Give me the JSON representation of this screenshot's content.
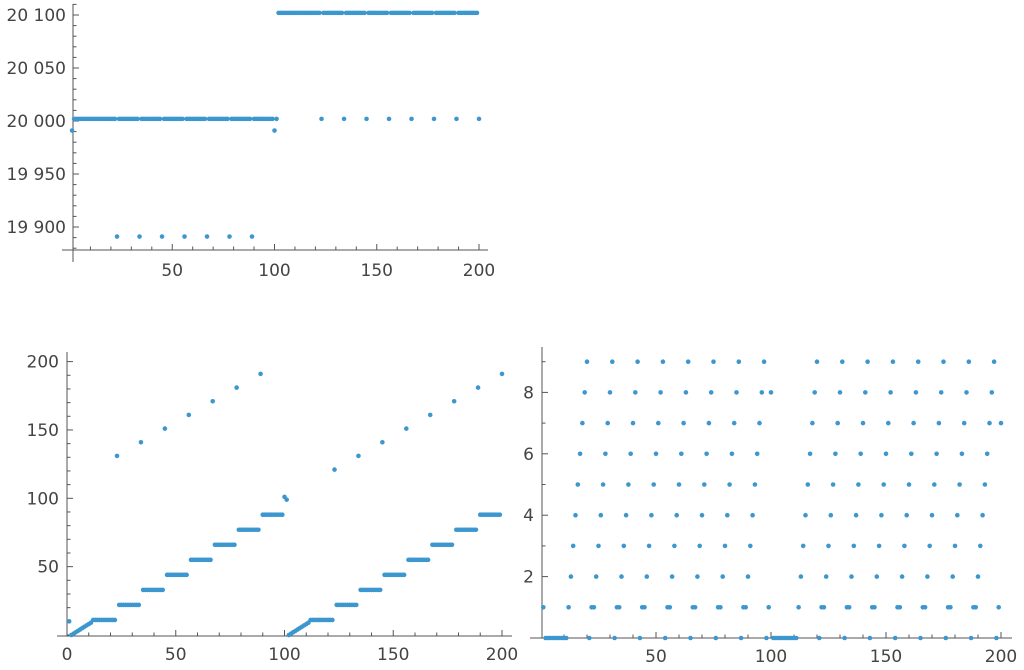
{
  "chart_data": [
    {
      "type": "scatter",
      "title": "",
      "xlabel": "",
      "ylabel": "",
      "x_start": 1,
      "x_step": 1,
      "xlim": [
        0,
        205
      ],
      "ylim": [
        19878,
        20111
      ],
      "grid": false,
      "point_color": "#3d97cf",
      "x_ticks": [
        50,
        100,
        150,
        200
      ],
      "x_tick_labels": [
        "50",
        "100",
        "150",
        "200"
      ],
      "y_ticks": [
        19900,
        19950,
        20000,
        20050,
        20100
      ],
      "y_tick_labels": [
        "19 900",
        "19 950",
        "20 000",
        "20 050",
        "20 100"
      ],
      "y": [
        19991,
        20002,
        20002,
        20002,
        20002,
        20002,
        20002,
        20002,
        20002,
        20002,
        20002,
        20002,
        20002,
        20002,
        20002,
        20002,
        20002,
        20002,
        20002,
        20002,
        20002,
        20002,
        19891,
        20002,
        20002,
        20002,
        20002,
        20002,
        20002,
        20002,
        20002,
        20002,
        20002,
        19891,
        20002,
        20002,
        20002,
        20002,
        20002,
        20002,
        20002,
        20002,
        20002,
        20002,
        19891,
        20002,
        20002,
        20002,
        20002,
        20002,
        20002,
        20002,
        20002,
        20002,
        20002,
        19891,
        20002,
        20002,
        20002,
        20002,
        20002,
        20002,
        20002,
        20002,
        20002,
        20002,
        19891,
        20002,
        20002,
        20002,
        20002,
        20002,
        20002,
        20002,
        20002,
        20002,
        20002,
        19891,
        20002,
        20002,
        20002,
        20002,
        20002,
        20002,
        20002,
        20002,
        20002,
        20002,
        19891,
        20002,
        20002,
        20002,
        20002,
        20002,
        20002,
        20002,
        20002,
        20002,
        20002,
        19991,
        20002,
        20102,
        20102,
        20102,
        20102,
        20102,
        20102,
        20102,
        20102,
        20102,
        20102,
        20102,
        20102,
        20102,
        20102,
        20102,
        20102,
        20102,
        20102,
        20102,
        20102,
        20102,
        20002,
        20102,
        20102,
        20102,
        20102,
        20102,
        20102,
        20102,
        20102,
        20102,
        20102,
        20002,
        20102,
        20102,
        20102,
        20102,
        20102,
        20102,
        20102,
        20102,
        20102,
        20102,
        20002,
        20102,
        20102,
        20102,
        20102,
        20102,
        20102,
        20102,
        20102,
        20102,
        20102,
        20002,
        20102,
        20102,
        20102,
        20102,
        20102,
        20102,
        20102,
        20102,
        20102,
        20102,
        20002,
        20102,
        20102,
        20102,
        20102,
        20102,
        20102,
        20102,
        20102,
        20102,
        20102,
        20002,
        20102,
        20102,
        20102,
        20102,
        20102,
        20102,
        20102,
        20102,
        20102,
        20102,
        20002,
        20102,
        20102,
        20102,
        20102,
        20102,
        20102,
        20102,
        20102,
        20102,
        20102,
        20002
      ]
    },
    {
      "type": "scatter",
      "title": "",
      "xlabel": "",
      "ylabel": "",
      "x_start": 1,
      "x_step": 1,
      "xlim": [
        0,
        205
      ],
      "ylim": [
        0,
        208
      ],
      "grid": false,
      "point_color": "#3d97cf",
      "x_ticks": [
        0,
        50,
        100,
        150,
        200
      ],
      "x_tick_labels": [
        "0",
        "50",
        "100",
        "150",
        "200"
      ],
      "y_ticks": [
        50,
        100,
        150,
        200
      ],
      "y_tick_labels": [
        "50",
        "100",
        "150",
        "200"
      ],
      "y": [
        10,
        0,
        1,
        2,
        3,
        4,
        5,
        6,
        7,
        8,
        9,
        11,
        11,
        11,
        11,
        11,
        11,
        11,
        11,
        11,
        11,
        11,
        131,
        22,
        22,
        22,
        22,
        22,
        22,
        22,
        22,
        22,
        22,
        141,
        33,
        33,
        33,
        33,
        33,
        33,
        33,
        33,
        33,
        33,
        151,
        44,
        44,
        44,
        44,
        44,
        44,
        44,
        44,
        44,
        44,
        161,
        55,
        55,
        55,
        55,
        55,
        55,
        55,
        55,
        55,
        55,
        171,
        66,
        66,
        66,
        66,
        66,
        66,
        66,
        66,
        66,
        66,
        181,
        77,
        77,
        77,
        77,
        77,
        77,
        77,
        77,
        77,
        77,
        191,
        88,
        88,
        88,
        88,
        88,
        88,
        88,
        88,
        88,
        88,
        101,
        99,
        0,
        1,
        2,
        3,
        4,
        5,
        6,
        7,
        8,
        9,
        11,
        11,
        11,
        11,
        11,
        11,
        11,
        11,
        11,
        11,
        11,
        121,
        22,
        22,
        22,
        22,
        22,
        22,
        22,
        22,
        22,
        22,
        131,
        33,
        33,
        33,
        33,
        33,
        33,
        33,
        33,
        33,
        33,
        141,
        44,
        44,
        44,
        44,
        44,
        44,
        44,
        44,
        44,
        44,
        151,
        55,
        55,
        55,
        55,
        55,
        55,
        55,
        55,
        55,
        55,
        161,
        66,
        66,
        66,
        66,
        66,
        66,
        66,
        66,
        66,
        66,
        171,
        77,
        77,
        77,
        77,
        77,
        77,
        77,
        77,
        77,
        77,
        181,
        88,
        88,
        88,
        88,
        88,
        88,
        88,
        88,
        88,
        88,
        191
      ]
    },
    {
      "type": "scatter",
      "title": "",
      "xlabel": "",
      "ylabel": "",
      "x_start": 1,
      "x_step": 1,
      "xlim": [
        0,
        205
      ],
      "ylim": [
        0,
        9.4
      ],
      "grid": false,
      "point_color": "#3d97cf",
      "x_ticks": [
        50,
        100,
        150,
        200
      ],
      "x_tick_labels": [
        "50",
        "100",
        "150",
        "200"
      ],
      "y_ticks": [
        2,
        4,
        6,
        8
      ],
      "y_tick_labels": [
        "2",
        "4",
        "6",
        "8"
      ],
      "y": [
        1,
        0,
        0,
        0,
        0,
        0,
        0,
        0,
        0,
        0,
        0,
        1,
        2,
        3,
        4,
        5,
        6,
        7,
        8,
        9,
        0,
        1,
        1,
        2,
        3,
        4,
        5,
        6,
        7,
        8,
        9,
        0,
        1,
        1,
        2,
        3,
        4,
        5,
        6,
        7,
        8,
        9,
        0,
        1,
        1,
        2,
        3,
        4,
        5,
        6,
        7,
        8,
        9,
        0,
        1,
        1,
        2,
        3,
        4,
        5,
        6,
        7,
        8,
        9,
        0,
        1,
        1,
        2,
        3,
        4,
        5,
        6,
        7,
        8,
        9,
        0,
        1,
        1,
        2,
        3,
        4,
        5,
        6,
        7,
        8,
        9,
        0,
        1,
        1,
        2,
        3,
        4,
        5,
        6,
        7,
        8,
        9,
        0,
        1,
        8,
        0,
        0,
        0,
        0,
        0,
        0,
        0,
        0,
        0,
        0,
        0,
        1,
        2,
        3,
        4,
        5,
        6,
        7,
        8,
        9,
        0,
        1,
        1,
        2,
        3,
        4,
        5,
        6,
        7,
        8,
        9,
        0,
        1,
        1,
        2,
        3,
        4,
        5,
        6,
        7,
        8,
        9,
        0,
        1,
        1,
        2,
        3,
        4,
        5,
        6,
        7,
        8,
        9,
        0,
        1,
        1,
        2,
        3,
        4,
        5,
        6,
        7,
        8,
        9,
        0,
        1,
        1,
        2,
        3,
        4,
        5,
        6,
        7,
        8,
        9,
        0,
        1,
        1,
        2,
        3,
        4,
        5,
        6,
        7,
        8,
        9,
        0,
        1,
        1,
        2,
        3,
        4,
        5,
        6,
        7,
        8,
        9,
        0,
        1,
        7
      ]
    }
  ]
}
